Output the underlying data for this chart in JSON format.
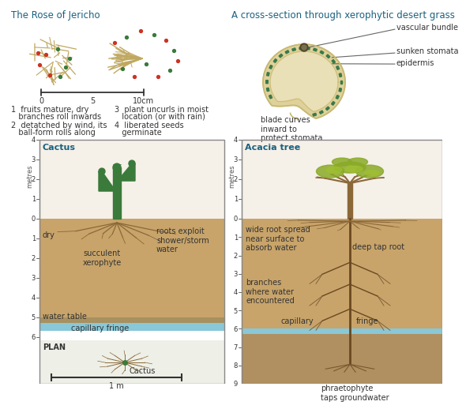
{
  "title_rose": "The Rose of Jericho",
  "title_grass": "A cross-section through xerophytic desert grass",
  "title_cactus": "Cactus",
  "title_acacia": "Acacia tree",
  "plan_label": "PLAN",
  "plan_cactus": "Cactus",
  "scale_label": "1 m",
  "bg_color": "#ffffff",
  "soil_top_color": "#c8a46a",
  "soil_mid_color": "#b08848",
  "soil_deep_color": "#9a7840",
  "capillary_color": "#a89060",
  "water_color": "#88c8d8",
  "subwater_color": "#c0a06a",
  "air_color": "#f5f0e8",
  "plan_bg": "#e8ede8",
  "grass_fill": "#e8ddb0",
  "grass_outline": "#c8b870",
  "stomata_color": "#3a7a4a",
  "vascular_color": "#6a6030",
  "blue_title": "#1a6080",
  "text_color": "#333333",
  "branch_color": "#c0a860",
  "root_color": "#8a6838",
  "cactus_color": "#3a7a3a",
  "trunk_color": "#8a6838",
  "acacia_canopy": "#8aaa28",
  "red_dot": "#cc3322",
  "green_dot": "#3a7a3a"
}
